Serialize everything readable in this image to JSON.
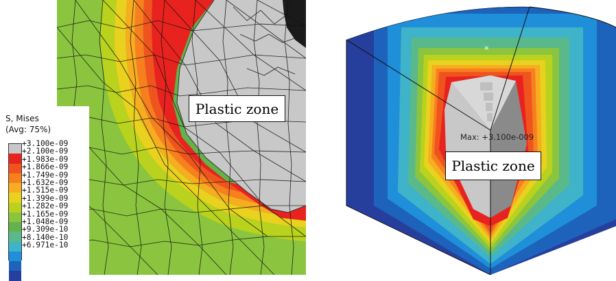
{
  "left_figure": {
    "legend": {
      "title": "S, Mises",
      "subtitle": "(Avg: 75%)",
      "labels": [
        "+3.100e-09",
        "+2.100e-09",
        "+1.983e-09",
        "+1.866e-09",
        "+1.749e-09",
        "+1.632e-09",
        "+1.515e-09",
        "+1.399e-09",
        "+1.282e-09",
        "+1.165e-09",
        "+1.048e-09",
        "+9.309e-10",
        "+8.140e-10",
        "+6.971e-10"
      ],
      "colors": [
        "#c8c8c8",
        "#e8231f",
        "#f0541e",
        "#f77f1e",
        "#f6ad1f",
        "#e9d11f",
        "#b8d21d",
        "#8bc53f",
        "#62b34a",
        "#59b98b",
        "#3fb3c9",
        "#1f8fd9",
        "#1d62bb",
        "#263f9c"
      ]
    },
    "annotation": "Plastic zone"
  },
  "right_figure": {
    "annotation": "Plastic zone",
    "max_label": "Max: +3.100e-009",
    "marker": "×"
  }
}
